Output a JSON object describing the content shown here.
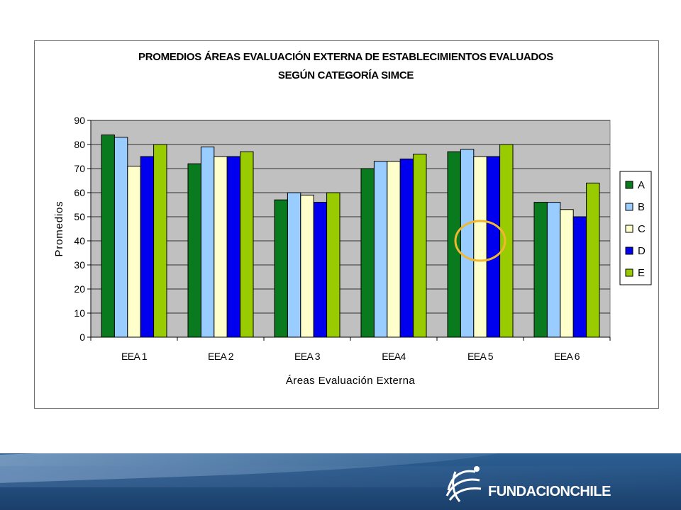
{
  "chart_data": {
    "type": "bar",
    "title_line1": "PROMEDIOS ÁREAS EVALUACIÓN EXTERNA DE ESTABLECIMIENTOS EVALUADOS",
    "title_line2": "SEGÚN CATEGORÍA SIMCE",
    "xlabel": "Áreas Evaluación Externa",
    "ylabel": "Promedios",
    "ylim": [
      0,
      90
    ],
    "yticks": [
      0,
      10,
      20,
      30,
      40,
      50,
      60,
      70,
      80,
      90
    ],
    "categories": [
      "EEA 1",
      "EEA 2",
      "EEA 3",
      "EEA4",
      "EEA 5",
      "EEA 6"
    ],
    "legend_position": "right",
    "grid": true,
    "plot_background": "#c0c0c0",
    "series": [
      {
        "name": "A",
        "color": "#0a7a1e",
        "values": [
          84,
          72,
          57,
          70,
          77,
          56
        ]
      },
      {
        "name": "B",
        "color": "#99ccff",
        "values": [
          83,
          79,
          60,
          73,
          78,
          56
        ]
      },
      {
        "name": "C",
        "color": "#ffffcc",
        "values": [
          71,
          75,
          59,
          73,
          75,
          53
        ]
      },
      {
        "name": "D",
        "color": "#0000ee",
        "values": [
          75,
          75,
          56,
          74,
          75,
          50
        ]
      },
      {
        "name": "E",
        "color": "#99cc00",
        "values": [
          80,
          77,
          60,
          76,
          80,
          64
        ]
      }
    ],
    "annotation": {
      "type": "circle",
      "color": "#f0b830",
      "category": "EEA 5",
      "y_center": 40
    }
  },
  "footer": {
    "brand": "FUNDACIONCHILE",
    "background": "#234f80"
  }
}
